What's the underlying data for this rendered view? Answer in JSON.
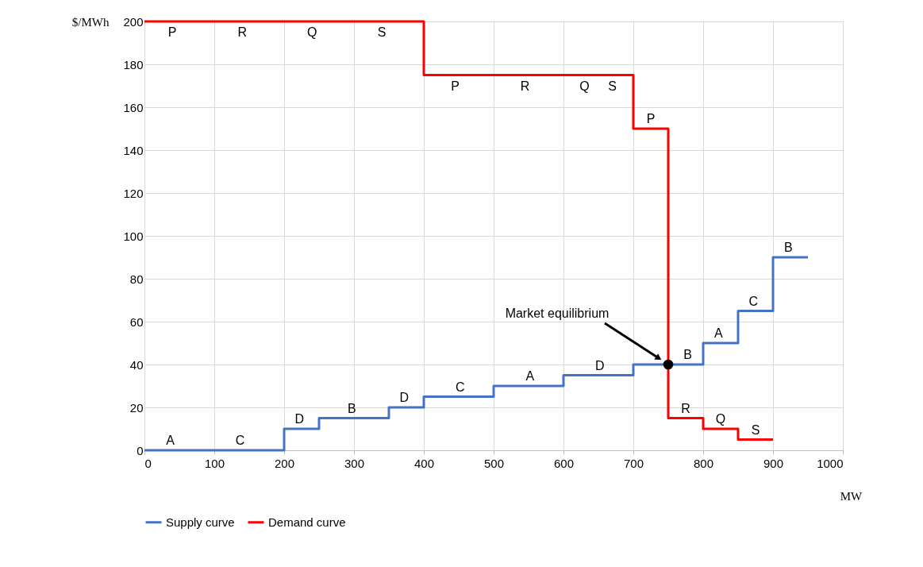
{
  "chart_data": {
    "type": "step",
    "xlabel": "MW",
    "ylabel": "$/MWh",
    "xlim": [
      0,
      1000
    ],
    "xticks": [
      0,
      100,
      200,
      300,
      400,
      500,
      600,
      700,
      800,
      900,
      1000
    ],
    "ylim": [
      0,
      200
    ],
    "yticks": [
      0,
      20,
      40,
      60,
      80,
      100,
      120,
      140,
      160,
      180,
      200
    ],
    "grid": true,
    "legend": "bottom",
    "line_style": "solid",
    "series": [
      {
        "name": "Supply curve",
        "color": "#4472c4",
        "x": [
          0,
          200,
          250,
          350,
          400,
          500,
          600,
          700,
          800,
          850,
          900,
          950
        ],
        "values": [
          0,
          10,
          15,
          20,
          25,
          30,
          35,
          40,
          50,
          65,
          90,
          90
        ]
      },
      {
        "name": "Demand curve",
        "color": "#ff0000",
        "x": [
          0,
          400,
          700,
          750,
          800,
          850,
          900
        ],
        "values": [
          200,
          175,
          150,
          15,
          10,
          5,
          5
        ]
      },
      {
        "type": "scatter",
        "color": "#000000",
        "marker": "circle",
        "x": [
          750
        ],
        "values": [
          40
        ]
      }
    ],
    "annotations": [
      "Market equilibrium",
      {
        "text": "A",
        "x": 37,
        "y": 0
      },
      {
        "text": "C",
        "x": 137,
        "y": 0
      },
      {
        "text": "D",
        "x": 222,
        "y": 10
      },
      {
        "text": "B",
        "x": 297,
        "y": 15
      },
      {
        "text": "D",
        "x": 372,
        "y": 20
      },
      {
        "text": "C",
        "x": 452,
        "y": 25
      },
      {
        "text": "A",
        "x": 552,
        "y": 30
      },
      {
        "text": "D",
        "x": 652,
        "y": 35
      },
      {
        "text": "B",
        "x": 778,
        "y": 40
      },
      {
        "text": "A",
        "x": 822,
        "y": 50
      },
      {
        "text": "C",
        "x": 872,
        "y": 65
      },
      {
        "text": "B",
        "x": 922,
        "y": 90
      },
      {
        "text": "P",
        "x": 40,
        "y": 200
      },
      {
        "text": "R",
        "x": 140,
        "y": 200
      },
      {
        "text": "Q",
        "x": 240,
        "y": 200
      },
      {
        "text": "S",
        "x": 340,
        "y": 200
      },
      {
        "text": "P",
        "x": 445,
        "y": 175
      },
      {
        "text": "R",
        "x": 545,
        "y": 175
      },
      {
        "text": "Q",
        "x": 630,
        "y": 175
      },
      {
        "text": "S",
        "x": 670,
        "y": 175
      },
      {
        "text": "P",
        "x": 725,
        "y": 150
      },
      {
        "text": "R",
        "x": 775,
        "y": 15
      },
      {
        "text": "Q",
        "x": 825,
        "y": 10
      },
      {
        "text": "S",
        "x": 875,
        "y": 5
      }
    ]
  }
}
